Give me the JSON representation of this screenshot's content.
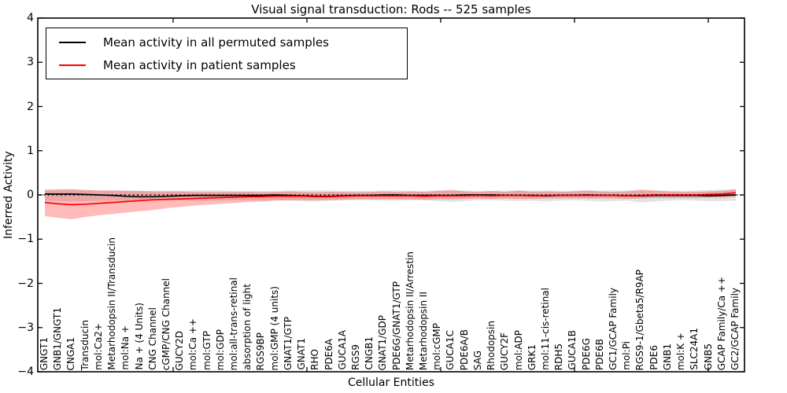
{
  "figure": {
    "title": "Visual signal transduction: Rods -- 525 samples",
    "xlabel": "Cellular Entities",
    "ylabel": "Inferred Activity"
  },
  "legend": {
    "entries": [
      {
        "label": "Mean activity in all permuted samples",
        "color": "#000000"
      },
      {
        "label": "Mean activity in patient samples",
        "color": "#ff0000"
      }
    ]
  },
  "chart_data": {
    "type": "line",
    "title": "Visual signal transduction: Rods -- 525 samples",
    "xlabel": "Cellular Entities",
    "ylabel": "Inferred Activity",
    "ylim": [
      -4,
      4
    ],
    "yticks": [
      -4,
      -3,
      -2,
      -1,
      0,
      1,
      2,
      3,
      4
    ],
    "grid": false,
    "legend_position": "upper left",
    "zero_reference_line": {
      "y": 0,
      "style": "dotted",
      "color": "#000000"
    },
    "categories": [
      "GNGT1",
      "GNB1/GNGT1",
      "CNGA1",
      "Transducin",
      "mol:Ca2+",
      "Metarhodopsin II/Transducin",
      "mol:Na +",
      "Na + (4 Units)",
      "CNG Channel",
      "cGMP/CNG Channel",
      "GUCY2D",
      "mol:Ca ++",
      "mol:GTP",
      "mol:GDP",
      "mol:all-trans-retinal",
      "absorption of light",
      "RGS9BP",
      "mol:GMP (4 units)",
      "GNAT1/GTP",
      "GNAT1",
      "RHO",
      "PDE6A",
      "GUCA1A",
      "RGS9",
      "CNGB1",
      "GNAT1/GDP",
      "PDE6G/GNAT1/GTP",
      "Metarhodopsin II/Arrestin",
      "Metarhodopsin II",
      "mol:cGMP",
      "GUCA1C",
      "PDE6A/B",
      "SAG",
      "Rhodopsin",
      "GUCY2F",
      "mol:ADP",
      "GRK1",
      "mol:11-cis-retinal",
      "RDH5",
      "GUCA1B",
      "PDE6G",
      "PDE6B",
      "GC1/GCAP Family",
      "mol:Pi",
      "RGS9-1/Gbeta5/R9AP",
      "PDE6",
      "GNB1",
      "mol:K +",
      "SLC24A1",
      "GNB5",
      "GCAP Family/Ca ++",
      "GC2/GCAP Family"
    ],
    "series": [
      {
        "name": "Mean activity in all permuted samples",
        "color": "#000000",
        "band_color": "#b0b0b0",
        "band_opacity": 0.35,
        "values": [
          0.02,
          0.02,
          0.02,
          0.01,
          0,
          -0.01,
          -0.03,
          -0.04,
          -0.04,
          -0.03,
          -0.02,
          -0.01,
          -0.01,
          -0.01,
          -0.01,
          -0.01,
          -0.01,
          0,
          -0.01,
          -0.02,
          -0.03,
          -0.03,
          -0.02,
          -0.01,
          -0.01,
          0,
          0,
          -0.01,
          -0.01,
          -0.01,
          -0.01,
          0,
          0,
          0,
          -0.01,
          -0.01,
          -0.01,
          -0.02,
          -0.01,
          -0.01,
          0,
          -0.01,
          -0.01,
          -0.02,
          -0.02,
          -0.01,
          -0.01,
          -0.01,
          -0.01,
          -0.02,
          -0.01,
          0
        ],
        "band_upper": [
          0.1,
          0.11,
          0.12,
          0.11,
          0.1,
          0.1,
          0.1,
          0.09,
          0.09,
          0.09,
          0.09,
          0.1,
          0.1,
          0.1,
          0.09,
          0.09,
          0.09,
          0.09,
          0.1,
          0.1,
          0.1,
          0.1,
          0.09,
          0.09,
          0.09,
          0.1,
          0.1,
          0.09,
          0.09,
          0.1,
          0.1,
          0.1,
          0.09,
          0.09,
          0.1,
          0.1,
          0.1,
          0.1,
          0.09,
          0.09,
          0.1,
          0.1,
          0.1,
          0.1,
          0.1,
          0.1,
          0.09,
          0.09,
          0.1,
          0.11,
          0.12,
          0.13
        ],
        "band_lower": [
          -0.13,
          -0.14,
          -0.15,
          -0.14,
          -0.13,
          -0.13,
          -0.12,
          -0.12,
          -0.12,
          -0.12,
          -0.12,
          -0.12,
          -0.13,
          -0.13,
          -0.12,
          -0.12,
          -0.12,
          -0.12,
          -0.13,
          -0.14,
          -0.14,
          -0.13,
          -0.12,
          -0.12,
          -0.12,
          -0.13,
          -0.13,
          -0.12,
          -0.12,
          -0.14,
          -0.16,
          -0.14,
          -0.12,
          -0.12,
          -0.13,
          -0.14,
          -0.13,
          -0.15,
          -0.13,
          -0.12,
          -0.13,
          -0.15,
          -0.14,
          -0.13,
          -0.17,
          -0.15,
          -0.13,
          -0.12,
          -0.13,
          -0.14,
          -0.14,
          -0.13
        ]
      },
      {
        "name": "Mean activity in patient samples",
        "color": "#ff0000",
        "band_color": "#ff0000",
        "band_opacity": 0.27,
        "values": [
          -0.17,
          -0.2,
          -0.22,
          -0.21,
          -0.19,
          -0.17,
          -0.15,
          -0.13,
          -0.11,
          -0.1,
          -0.09,
          -0.08,
          -0.07,
          -0.06,
          -0.05,
          -0.04,
          -0.04,
          -0.03,
          -0.03,
          -0.03,
          -0.04,
          -0.04,
          -0.03,
          -0.02,
          -0.02,
          -0.02,
          -0.02,
          -0.02,
          -0.03,
          -0.02,
          -0.02,
          -0.02,
          -0.01,
          -0.02,
          -0.01,
          -0.01,
          -0.02,
          -0.01,
          -0.01,
          -0.01,
          -0.01,
          -0.01,
          -0.01,
          -0.02,
          -0.01,
          0,
          0,
          0,
          0,
          0.01,
          0.02,
          0.05
        ],
        "band_upper": [
          0.12,
          0.13,
          0.13,
          0.11,
          0.1,
          0.1,
          0.09,
          0.09,
          0.08,
          0.08,
          0.08,
          0.07,
          0.07,
          0.07,
          0.07,
          0.07,
          0.06,
          0.07,
          0.08,
          0.07,
          0.06,
          0.07,
          0.07,
          0.06,
          0.07,
          0.08,
          0.07,
          0.08,
          0.07,
          0.09,
          0.11,
          0.08,
          0.07,
          0.09,
          0.07,
          0.1,
          0.07,
          0.08,
          0.07,
          0.08,
          0.1,
          0.08,
          0.07,
          0.08,
          0.12,
          0.1,
          0.08,
          0.07,
          0.07,
          0.08,
          0.09,
          0.13
        ],
        "band_lower": [
          -0.48,
          -0.52,
          -0.55,
          -0.5,
          -0.46,
          -0.43,
          -0.4,
          -0.37,
          -0.34,
          -0.3,
          -0.27,
          -0.24,
          -0.22,
          -0.2,
          -0.18,
          -0.16,
          -0.15,
          -0.13,
          -0.12,
          -0.12,
          -0.12,
          -0.12,
          -0.11,
          -0.1,
          -0.1,
          -0.1,
          -0.1,
          -0.1,
          -0.11,
          -0.1,
          -0.1,
          -0.09,
          -0.08,
          -0.09,
          -0.08,
          -0.09,
          -0.09,
          -0.08,
          -0.08,
          -0.08,
          -0.08,
          -0.08,
          -0.08,
          -0.09,
          -0.08,
          -0.07,
          -0.07,
          -0.07,
          -0.07,
          -0.06,
          -0.06,
          -0.04
        ]
      }
    ]
  }
}
